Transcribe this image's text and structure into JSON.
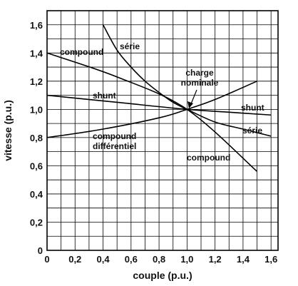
{
  "chart_data": {
    "type": "line",
    "xlabel": "couple (p.u.)",
    "ylabel": "vitesse (p.u.)",
    "xlim": [
      0,
      1.65
    ],
    "ylim": [
      0,
      1.7
    ],
    "x_ticks": [
      "0",
      "0,2",
      "0,4",
      "0,6",
      "0,8",
      "1,0",
      "1,2",
      "1,4",
      "1,6"
    ],
    "y_ticks": [
      "0",
      "0,2",
      "0,4",
      "0,6",
      "0,8",
      "1,0",
      "1,2",
      "1,4",
      "1,6"
    ],
    "grid": true,
    "series": [
      {
        "name": "compound",
        "x": [
          0,
          0.5,
          1.0,
          1.5
        ],
        "y": [
          1.4,
          1.23,
          1.0,
          0.56
        ]
      },
      {
        "name": "série",
        "x": [
          0.4,
          0.5,
          0.6,
          0.7,
          0.8,
          0.9,
          1.0,
          1.2,
          1.4,
          1.6
        ],
        "y": [
          1.6,
          1.42,
          1.3,
          1.2,
          1.12,
          1.05,
          1.0,
          0.91,
          0.86,
          0.81
        ]
      },
      {
        "name": "shunt",
        "x": [
          0,
          0.5,
          1.0,
          1.3,
          1.6
        ],
        "y": [
          1.1,
          1.05,
          1.0,
          0.98,
          0.96
        ]
      },
      {
        "name": "compound différentiel",
        "x": [
          0,
          0.4,
          0.8,
          1.0,
          1.2,
          1.5
        ],
        "y": [
          0.8,
          0.86,
          0.94,
          1.0,
          1.07,
          1.2
        ]
      }
    ],
    "annotations": [
      {
        "text_line1": "charge",
        "text_line2": "nominale",
        "x": 1.0,
        "y": 1.0
      }
    ]
  },
  "labels": {
    "compound_top": "compound",
    "serie_top": "série",
    "shunt_left": "shunt",
    "shunt_right": "shunt",
    "serie_right": "série",
    "diff_line1": "compound",
    "diff_line2": "différentiel",
    "compound_bottom": "compound",
    "charge_line1": "charge",
    "charge_line2": "nominale"
  }
}
